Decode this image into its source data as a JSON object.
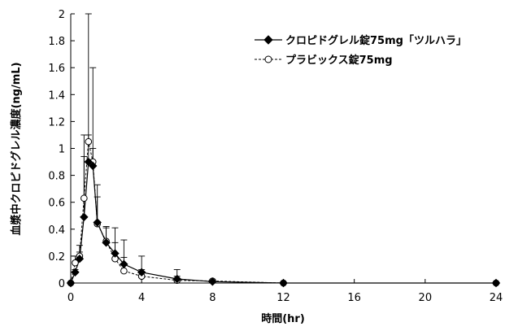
{
  "chart_data": {
    "type": "line",
    "title": "",
    "xlabel": "時間(hr)",
    "ylabel": "血漿中クロピドグレル濃度(ng/mL)",
    "xlim": [
      0,
      24
    ],
    "ylim": [
      0,
      2
    ],
    "x_ticks": [
      "0",
      "4",
      "8",
      "12",
      "16",
      "20",
      "24"
    ],
    "y_ticks": [
      "0",
      "0.2",
      "0.4",
      "0.6",
      "0.8",
      "1",
      "1.2",
      "1.4",
      "1.6",
      "1.8",
      "2"
    ],
    "grid": false,
    "legend_position": "top-right",
    "series": [
      {
        "name": "クロピドグレル錠75mg「ツルハラ」",
        "marker": "filled-diamond",
        "line_style": "solid",
        "color": "#000000",
        "x": [
          0,
          0.25,
          0.5,
          0.75,
          1,
          1.25,
          1.5,
          2,
          2.5,
          3,
          4,
          6,
          8,
          12,
          24
        ],
        "y": [
          0,
          0.08,
          0.18,
          0.49,
          0.9,
          0.87,
          0.45,
          0.3,
          0.22,
          0.14,
          0.08,
          0.03,
          0.01,
          0,
          0
        ],
        "error_upper": [
          0,
          0.02,
          0.05,
          0.45,
          1.1,
          0.73,
          0.28,
          0.12,
          0.19,
          0.18,
          0.12,
          0.02,
          0.01,
          0,
          0
        ]
      },
      {
        "name": "プラビックス錠75mg",
        "marker": "open-circle",
        "line_style": "dashed",
        "color": "#000000",
        "x": [
          0,
          0.25,
          0.5,
          0.75,
          1,
          1.25,
          1.5,
          2,
          2.5,
          3,
          4,
          6,
          8,
          12,
          24
        ],
        "y": [
          0,
          0.15,
          0.2,
          0.63,
          1.05,
          0.9,
          0.44,
          0.31,
          0.18,
          0.09,
          0.05,
          0.02,
          0.015,
          0,
          0
        ],
        "error_upper": [
          0,
          0.05,
          0.08,
          0.47,
          0.05,
          0.1,
          0.2,
          0.1,
          0.12,
          0.1,
          0.05,
          0.08,
          0.01,
          0,
          0
        ]
      }
    ]
  }
}
